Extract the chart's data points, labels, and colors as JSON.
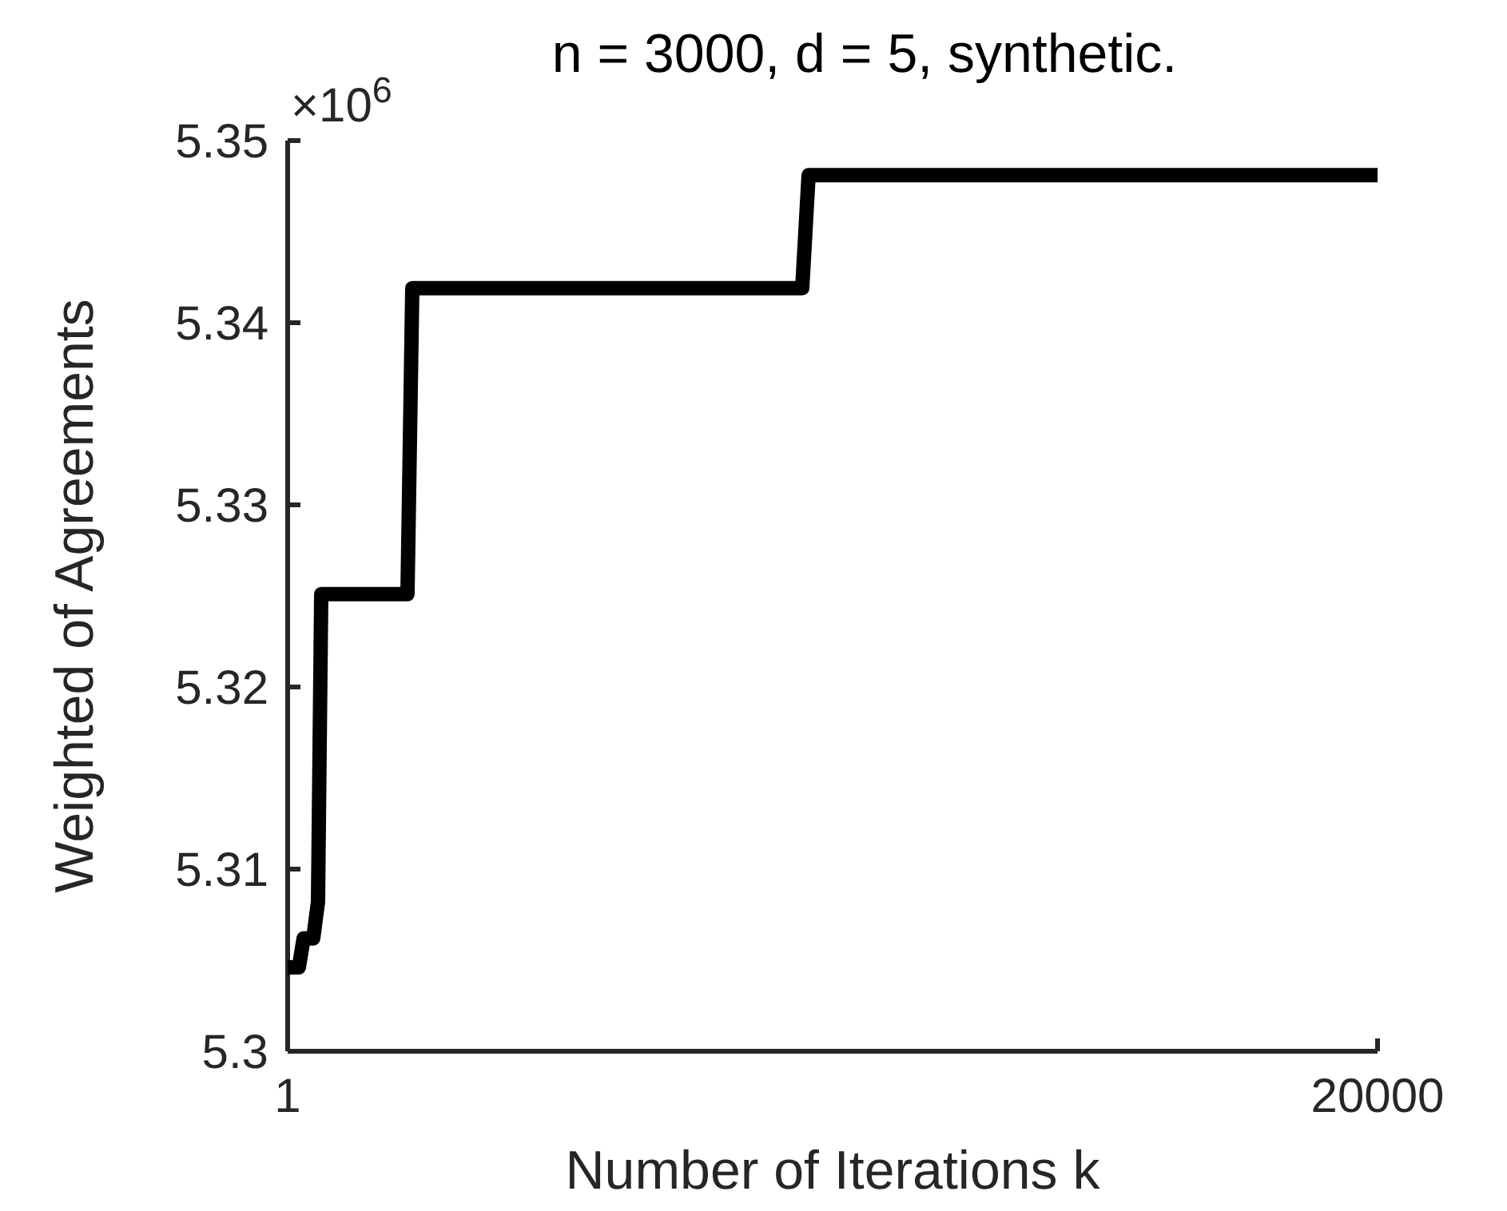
{
  "chart_data": {
    "type": "line",
    "title": "n = 3000, d = 5, synthetic.",
    "xlabel": "Number of Iterations k",
    "ylabel": "Weighted of Agreements",
    "annotations": [
      "×10$^{6}$"
    ],
    "series": [
      {
        "color": "#000000",
        "x": [
          1,
          206,
          294,
          470,
          558,
          617,
          2200,
          2288,
          9443,
          9560,
          20000
        ],
        "values": [
          5.3046,
          5.3046,
          5.3062,
          5.3062,
          5.3082,
          5.3251,
          5.3251,
          5.3419,
          5.3419,
          5.3481,
          5.3481
        ]
      }
    ],
    "xlim": [
      1,
      20000
    ],
    "xticks": [
      1,
      20000
    ],
    "ylim": [
      5.3,
      5.35
    ],
    "yticks": [
      5.3,
      5.31,
      5.32,
      5.33,
      5.34,
      5.35
    ],
    "grid": false,
    "marker": "none",
    "line_style": "solid"
  }
}
